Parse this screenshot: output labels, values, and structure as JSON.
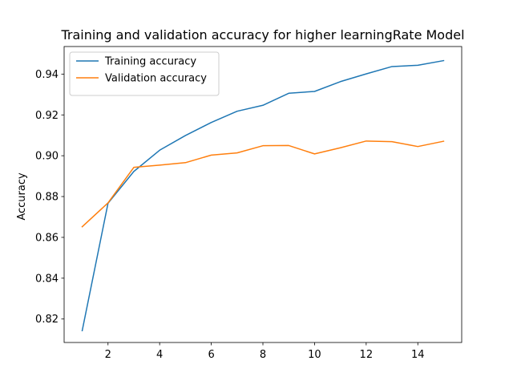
{
  "chart_data": {
    "type": "line",
    "title": "Training and validation accuracy for higher learningRate Model",
    "xlabel": "",
    "ylabel": "Accuracy",
    "x": [
      1,
      2,
      3,
      4,
      5,
      6,
      7,
      8,
      9,
      10,
      11,
      12,
      13,
      14,
      15
    ],
    "xlim": [
      0.3,
      15.7
    ],
    "ylim": [
      0.8085,
      0.9535
    ],
    "xticks": [
      2,
      4,
      6,
      8,
      10,
      12,
      14
    ],
    "yticks": [
      0.82,
      0.84,
      0.86,
      0.88,
      0.9,
      0.92,
      0.94
    ],
    "grid": false,
    "legend_position": "top-left",
    "series": [
      {
        "name": "Training accuracy",
        "color": "#1f77b4",
        "values": [
          0.8143,
          0.8767,
          0.8923,
          0.9027,
          0.9099,
          0.9163,
          0.9218,
          0.9247,
          0.9306,
          0.9315,
          0.9363,
          0.9401,
          0.9437,
          0.9443,
          0.9466
        ]
      },
      {
        "name": "Validation accuracy",
        "color": "#ff7f0e",
        "values": [
          0.8652,
          0.8769,
          0.8943,
          0.8954,
          0.8966,
          0.9003,
          0.9014,
          0.9049,
          0.905,
          0.9009,
          0.9039,
          0.9072,
          0.9069,
          0.9045,
          0.9071
        ]
      }
    ]
  }
}
